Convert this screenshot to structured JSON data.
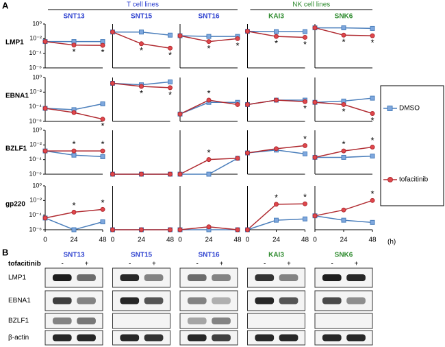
{
  "figure": {
    "panel_a": "A",
    "panel_b": "B",
    "x_unit": "(h)",
    "legend_position": "right",
    "groups": [
      {
        "label": "T cell lines",
        "color": "#2b3fcf",
        "columns": [
          0,
          2
        ]
      },
      {
        "label": "NK cell lines",
        "color": "#2e8b2e",
        "columns": [
          3,
          4
        ]
      }
    ],
    "rows": [
      "LMP1",
      "EBNA1",
      "BZLF1",
      "gp220"
    ],
    "columns": [
      {
        "label": "SNT13",
        "color": "#2b3fcf"
      },
      {
        "label": "SNT15",
        "color": "#2b3fcf"
      },
      {
        "label": "SNT16",
        "color": "#2b3fcf"
      },
      {
        "label": "KAI3",
        "color": "#2e8b2e"
      },
      {
        "label": "SNK6",
        "color": "#2e8b2e"
      }
    ]
  },
  "chart_data": [
    {
      "type": "line",
      "log_y": true,
      "x": [
        0,
        24,
        48
      ],
      "xlim": [
        0,
        48
      ],
      "ylim": [
        1e-06,
        1
      ],
      "yticks": [
        {
          "value": 1,
          "label": "10⁰"
        },
        {
          "value": 0.01,
          "label": "10⁻²"
        },
        {
          "value": 0.0001,
          "label": "10⁻⁴"
        },
        {
          "value": 1e-06,
          "label": "10⁻⁶"
        }
      ],
      "series": [
        {
          "name": "DMSO",
          "color": "#4a7ebb",
          "values": [
            0.004,
            0.004,
            0.004
          ]
        },
        {
          "name": "tofacitinib",
          "color": "#b02a30",
          "values": [
            0.004,
            0.0013,
            0.0012
          ]
        }
      ],
      "annotations": [
        {
          "text": "*",
          "x": 24
        },
        {
          "text": "*",
          "x": 48
        }
      ]
    },
    {
      "type": "line",
      "log_y": true,
      "x": [
        0,
        24,
        48
      ],
      "xlim": [
        0,
        48
      ],
      "ylim": [
        1e-06,
        1
      ],
      "series": [
        {
          "name": "DMSO",
          "color": "#4a7ebb",
          "values": [
            0.08,
            0.08,
            0.03
          ]
        },
        {
          "name": "tofacitinib",
          "color": "#b02a30",
          "values": [
            0.08,
            0.002,
            0.0005
          ]
        }
      ],
      "annotations": [
        {
          "text": "*",
          "x": 24
        },
        {
          "text": "*",
          "x": 48
        }
      ]
    },
    {
      "type": "line",
      "log_y": true,
      "x": [
        0,
        24,
        48
      ],
      "xlim": [
        0,
        48
      ],
      "ylim": [
        1e-06,
        1
      ],
      "series": [
        {
          "name": "DMSO",
          "color": "#4a7ebb",
          "values": [
            0.025,
            0.02,
            0.02
          ]
        },
        {
          "name": "tofacitinib",
          "color": "#b02a30",
          "values": [
            0.025,
            0.004,
            0.01
          ]
        }
      ],
      "annotations": [
        {
          "text": "*",
          "x": 24
        },
        {
          "text": "*",
          "x": 48
        }
      ]
    },
    {
      "type": "line",
      "log_y": true,
      "x": [
        0,
        24,
        48
      ],
      "xlim": [
        0,
        48
      ],
      "ylim": [
        1e-06,
        1
      ],
      "series": [
        {
          "name": "DMSO",
          "color": "#4a7ebb",
          "values": [
            0.1,
            0.09,
            0.09
          ]
        },
        {
          "name": "tofacitinib",
          "color": "#b02a30",
          "values": [
            0.1,
            0.02,
            0.015
          ]
        }
      ],
      "annotations": [
        {
          "text": "*",
          "x": 24
        },
        {
          "text": "*",
          "x": 48
        }
      ]
    },
    {
      "type": "line",
      "log_y": true,
      "x": [
        0,
        24,
        48
      ],
      "xlim": [
        0,
        48
      ],
      "ylim": [
        1e-06,
        1
      ],
      "series": [
        {
          "name": "DMSO",
          "color": "#4a7ebb",
          "values": [
            0.3,
            0.3,
            0.25
          ]
        },
        {
          "name": "tofacitinib",
          "color": "#b02a30",
          "values": [
            0.3,
            0.03,
            0.025
          ]
        }
      ],
      "annotations": [
        {
          "text": "*",
          "x": 24
        },
        {
          "text": "*",
          "x": 48
        }
      ]
    },
    {
      "type": "line",
      "log_y": true,
      "x": [
        0,
        24,
        48
      ],
      "xlim": [
        0,
        48
      ],
      "ylim": [
        1e-06,
        1
      ],
      "yticks": [
        {
          "value": 1,
          "label": "10⁰"
        },
        {
          "value": 0.01,
          "label": "10⁻²"
        },
        {
          "value": 0.0001,
          "label": "10⁻⁴"
        },
        {
          "value": 1e-06,
          "label": "10⁻⁶"
        }
      ],
      "series": [
        {
          "name": "DMSO",
          "color": "#4a7ebb",
          "values": [
            6e-05,
            4e-05,
            0.00025
          ]
        },
        {
          "name": "tofacitinib",
          "color": "#b02a30",
          "values": [
            6e-05,
            1.6e-05,
            2e-06
          ]
        }
      ],
      "annotations": [
        {
          "text": "*",
          "x": 48
        }
      ]
    },
    {
      "type": "line",
      "log_y": true,
      "x": [
        0,
        24,
        48
      ],
      "xlim": [
        0,
        48
      ],
      "ylim": [
        1e-06,
        1
      ],
      "series": [
        {
          "name": "DMSO",
          "color": "#4a7ebb",
          "values": [
            0.16,
            0.1,
            0.25
          ]
        },
        {
          "name": "tofacitinib",
          "color": "#b02a30",
          "values": [
            0.16,
            0.06,
            0.04
          ]
        }
      ],
      "annotations": [
        {
          "text": "*",
          "x": 24
        },
        {
          "text": "*",
          "x": 48
        }
      ]
    },
    {
      "type": "line",
      "log_y": true,
      "x": [
        0,
        24,
        48
      ],
      "xlim": [
        0,
        48
      ],
      "ylim": [
        1e-06,
        1
      ],
      "series": [
        {
          "name": "DMSO",
          "color": "#4a7ebb",
          "values": [
            1e-05,
            0.0004,
            0.0004
          ]
        },
        {
          "name": "tofacitinib",
          "color": "#b02a30",
          "values": [
            1e-05,
            0.0008,
            0.0002
          ]
        }
      ],
      "annotations": [
        {
          "text": "*",
          "x": 24
        }
      ]
    },
    {
      "type": "line",
      "log_y": true,
      "x": [
        0,
        24,
        48
      ],
      "xlim": [
        0,
        48
      ],
      "ylim": [
        1e-06,
        1
      ],
      "series": [
        {
          "name": "DMSO",
          "color": "#4a7ebb",
          "values": [
            0.0002,
            0.0008,
            0.0008
          ]
        },
        {
          "name": "tofacitinib",
          "color": "#b02a30",
          "values": [
            0.0002,
            0.0008,
            0.0005
          ]
        }
      ],
      "annotations": [
        {
          "text": "*",
          "x": 48
        }
      ]
    },
    {
      "type": "line",
      "log_y": true,
      "x": [
        0,
        24,
        48
      ],
      "xlim": [
        0,
        48
      ],
      "ylim": [
        1e-06,
        1
      ],
      "series": [
        {
          "name": "DMSO",
          "color": "#4a7ebb",
          "values": [
            0.0004,
            0.0006,
            0.0015
          ]
        },
        {
          "name": "tofacitinib",
          "color": "#b02a30",
          "values": [
            0.0004,
            0.0002,
            1.2e-05
          ]
        }
      ],
      "annotations": [
        {
          "text": "*",
          "x": 24
        },
        {
          "text": "*",
          "x": 48
        }
      ]
    },
    {
      "type": "line",
      "log_y": true,
      "x": [
        0,
        24,
        48
      ],
      "xlim": [
        0,
        48
      ],
      "ylim": [
        1e-06,
        1
      ],
      "yticks": [
        {
          "value": 1,
          "label": "10⁰"
        },
        {
          "value": 0.01,
          "label": "10⁻²"
        },
        {
          "value": 0.0001,
          "label": "10⁻⁴"
        },
        {
          "value": 1e-06,
          "label": "10⁻⁶"
        }
      ],
      "series": [
        {
          "name": "DMSO",
          "color": "#4a7ebb",
          "values": [
            0.0015,
            0.0004,
            0.00025
          ]
        },
        {
          "name": "tofacitinib",
          "color": "#b02a30",
          "values": [
            0.0015,
            0.0015,
            0.0015
          ]
        }
      ],
      "annotations": [
        {
          "text": "*",
          "x": 24
        },
        {
          "text": "*",
          "x": 48
        }
      ]
    },
    {
      "type": "line",
      "log_y": true,
      "x": [
        0,
        24,
        48
      ],
      "xlim": [
        0,
        48
      ],
      "ylim": [
        1e-06,
        1
      ],
      "series": [
        {
          "name": "DMSO",
          "color": "#4a7ebb",
          "values": [
            1e-06,
            1e-06,
            1e-06
          ]
        },
        {
          "name": "tofacitinib",
          "color": "#b02a30",
          "values": [
            1e-06,
            1e-06,
            1e-06
          ]
        }
      ],
      "annotations": []
    },
    {
      "type": "line",
      "log_y": true,
      "x": [
        0,
        24,
        48
      ],
      "xlim": [
        0,
        48
      ],
      "ylim": [
        1e-06,
        1
      ],
      "series": [
        {
          "name": "DMSO",
          "color": "#4a7ebb",
          "values": [
            1e-06,
            1e-06,
            0.00015
          ]
        },
        {
          "name": "tofacitinib",
          "color": "#b02a30",
          "values": [
            1e-06,
            0.0001,
            0.00015
          ]
        }
      ],
      "annotations": [
        {
          "text": "*",
          "x": 24
        }
      ]
    },
    {
      "type": "line",
      "log_y": true,
      "x": [
        0,
        24,
        48
      ],
      "xlim": [
        0,
        48
      ],
      "ylim": [
        1e-06,
        1
      ],
      "series": [
        {
          "name": "DMSO",
          "color": "#4a7ebb",
          "values": [
            0.0008,
            0.002,
            0.0006
          ]
        },
        {
          "name": "tofacitinib",
          "color": "#b02a30",
          "values": [
            0.0008,
            0.003,
            0.008
          ]
        }
      ],
      "annotations": [
        {
          "text": "*",
          "x": 48
        }
      ]
    },
    {
      "type": "line",
      "log_y": true,
      "x": [
        0,
        24,
        48
      ],
      "xlim": [
        0,
        48
      ],
      "ylim": [
        1e-06,
        1
      ],
      "series": [
        {
          "name": "DMSO",
          "color": "#4a7ebb",
          "values": [
            0.0002,
            0.0002,
            0.0003
          ]
        },
        {
          "name": "tofacitinib",
          "color": "#b02a30",
          "values": [
            0.0002,
            0.0015,
            0.005
          ]
        }
      ],
      "annotations": [
        {
          "text": "*",
          "x": 24
        },
        {
          "text": "*",
          "x": 48
        }
      ]
    },
    {
      "type": "line",
      "log_y": true,
      "x": [
        0,
        24,
        48
      ],
      "xlim": [
        0,
        48
      ],
      "ylim": [
        1e-06,
        1
      ],
      "xticks": [
        0,
        24,
        48
      ],
      "yticks": [
        {
          "value": 1,
          "label": "10⁰"
        },
        {
          "value": 0.01,
          "label": "10⁻²"
        },
        {
          "value": 0.0001,
          "label": "10⁻⁴"
        },
        {
          "value": 1e-06,
          "label": "10⁻⁶"
        }
      ],
      "series": [
        {
          "name": "DMSO",
          "color": "#4a7ebb",
          "values": [
            4e-05,
            1e-06,
            1.2e-05
          ]
        },
        {
          "name": "tofacitinib",
          "color": "#b02a30",
          "values": [
            4e-05,
            0.00025,
            0.0006
          ]
        }
      ],
      "annotations": [
        {
          "text": "*",
          "x": 24
        },
        {
          "text": "*",
          "x": 48
        }
      ]
    },
    {
      "type": "line",
      "log_y": true,
      "x": [
        0,
        24,
        48
      ],
      "xlim": [
        0,
        48
      ],
      "ylim": [
        1e-06,
        1
      ],
      "xticks": [
        0,
        24,
        48
      ],
      "series": [
        {
          "name": "DMSO",
          "color": "#4a7ebb",
          "values": [
            1e-06,
            1e-06,
            1e-06
          ]
        },
        {
          "name": "tofacitinib",
          "color": "#b02a30",
          "values": [
            1e-06,
            1e-06,
            1e-06
          ]
        }
      ],
      "annotations": []
    },
    {
      "type": "line",
      "log_y": true,
      "x": [
        0,
        24,
        48
      ],
      "xlim": [
        0,
        48
      ],
      "ylim": [
        1e-06,
        1
      ],
      "xticks": [
        0,
        24,
        48
      ],
      "series": [
        {
          "name": "DMSO",
          "color": "#4a7ebb",
          "values": [
            1e-06,
            1e-06,
            1e-06
          ]
        },
        {
          "name": "tofacitinib",
          "color": "#b02a30",
          "values": [
            1e-06,
            2.5e-06,
            1e-06
          ]
        }
      ],
      "annotations": []
    },
    {
      "type": "line",
      "log_y": true,
      "x": [
        0,
        24,
        48
      ],
      "xlim": [
        0,
        48
      ],
      "ylim": [
        1e-06,
        1
      ],
      "xticks": [
        0,
        24,
        48
      ],
      "series": [
        {
          "name": "DMSO",
          "color": "#4a7ebb",
          "values": [
            1e-06,
            2e-05,
            3e-05
          ]
        },
        {
          "name": "tofacitinib",
          "color": "#b02a30",
          "values": [
            1e-06,
            0.003,
            0.0035
          ]
        }
      ],
      "annotations": [
        {
          "text": "*",
          "x": 24
        },
        {
          "text": "*",
          "x": 48
        }
      ]
    },
    {
      "type": "line",
      "log_y": true,
      "x": [
        0,
        24,
        48
      ],
      "xlim": [
        0,
        48
      ],
      "ylim": [
        1e-06,
        1
      ],
      "xticks": [
        0,
        24,
        48
      ],
      "series": [
        {
          "name": "DMSO",
          "color": "#4a7ebb",
          "values": [
            8e-05,
            2e-05,
            1e-05
          ]
        },
        {
          "name": "tofacitinib",
          "color": "#b02a30",
          "values": [
            8e-05,
            0.0005,
            0.01
          ]
        }
      ],
      "annotations": [
        {
          "text": "*",
          "x": 48
        }
      ]
    }
  ],
  "blot": {
    "treatment": "tofacitinib",
    "rows": [
      "LMP1",
      "EBNA1",
      "BZLF1",
      "β-actin"
    ],
    "columns": [
      {
        "label": "SNT13",
        "color": "#2b3fcf",
        "lanes": [
          "-",
          "+"
        ]
      },
      {
        "label": "SNT15",
        "color": "#2b3fcf",
        "lanes": [
          "-",
          "+"
        ]
      },
      {
        "label": "SNT16",
        "color": "#2b3fcf",
        "lanes": [
          "-",
          "+"
        ]
      },
      {
        "label": "KAI3",
        "color": "#2e8b2e",
        "lanes": [
          "-",
          "+"
        ]
      },
      {
        "label": "SNK6",
        "color": "#2e8b2e",
        "lanes": [
          "-",
          "+"
        ]
      }
    ],
    "intensity": [
      [
        [
          0.95,
          0.6
        ],
        [
          0.9,
          0.5
        ],
        [
          0.6,
          0.5
        ],
        [
          0.85,
          0.5
        ],
        [
          0.95,
          0.9
        ]
      ],
      [
        [
          0.8,
          0.5
        ],
        [
          0.9,
          0.7
        ],
        [
          0.5,
          0.3
        ],
        [
          0.9,
          0.7
        ],
        [
          0.75,
          0.45
        ]
      ],
      [
        [
          0.5,
          0.55
        ],
        [
          0,
          0
        ],
        [
          0.35,
          0.5
        ],
        [
          0,
          0
        ],
        [
          0,
          0
        ]
      ],
      [
        [
          0.9,
          0.9
        ],
        [
          0.9,
          0.85
        ],
        [
          0.9,
          0.8
        ],
        [
          0.9,
          0.9
        ],
        [
          0.9,
          0.9
        ]
      ]
    ]
  }
}
